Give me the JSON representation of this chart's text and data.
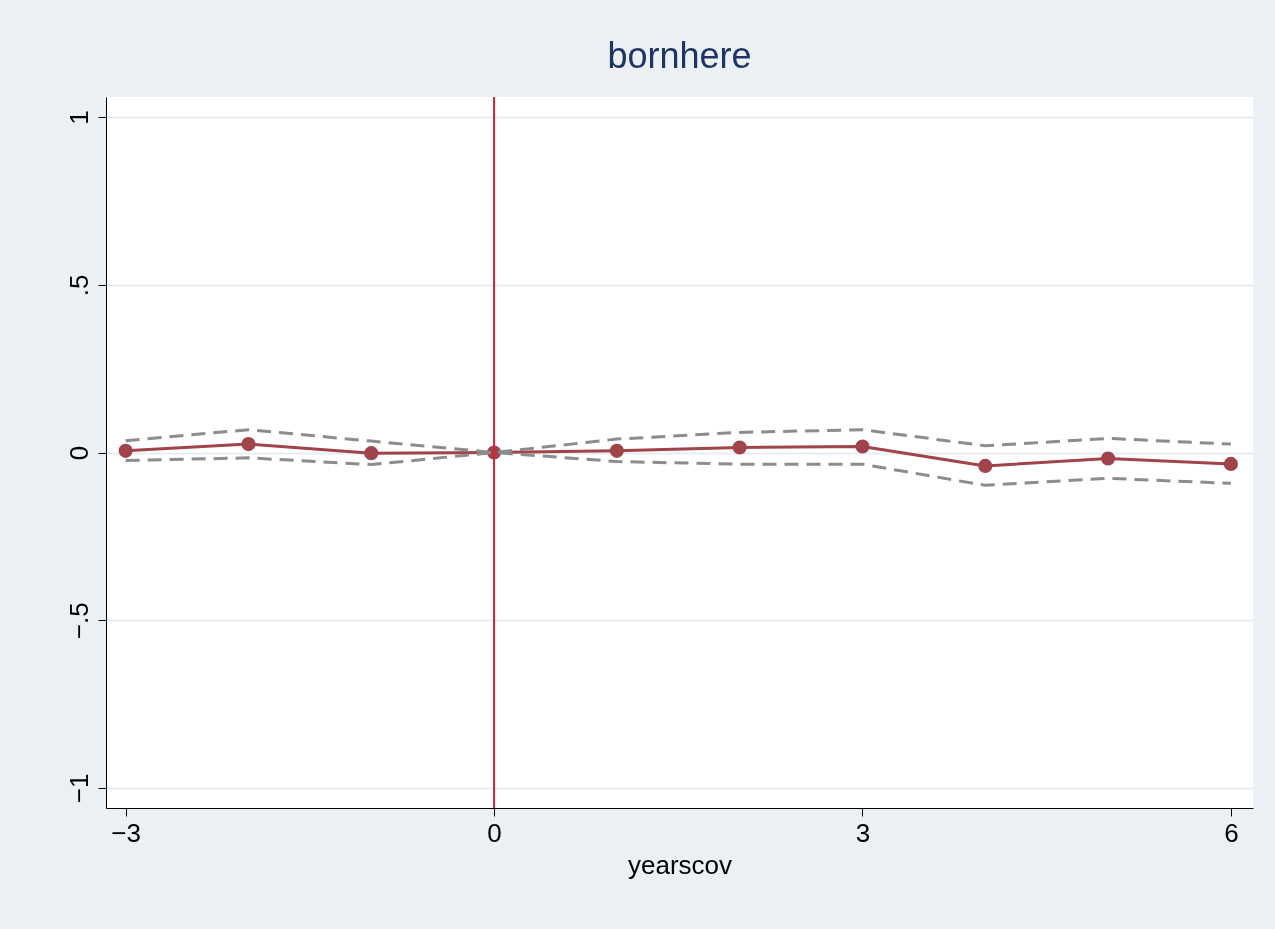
{
  "chart_data": {
    "type": "line",
    "title": "bornhere",
    "xlabel": "yearscov",
    "x": [
      -3,
      -2,
      -1,
      0,
      1,
      2,
      3,
      4,
      5,
      6
    ],
    "series": [
      {
        "color": "#a0434a",
        "marker": "circle",
        "line_style": "solid",
        "values": [
          0.005,
          0.025,
          -0.002,
          0,
          0.005,
          0.015,
          0.018,
          -0.04,
          -0.018,
          -0.034
        ]
      },
      {
        "color": "#8c8c8c",
        "marker": "none",
        "line_style": "dashed",
        "values": [
          0.035,
          0.068,
          0.034,
          0,
          0.04,
          0.06,
          0.068,
          0.02,
          0.042,
          0.025
        ]
      },
      {
        "color": "#8c8c8c",
        "marker": "none",
        "line_style": "dashed",
        "values": [
          -0.024,
          -0.016,
          -0.036,
          0,
          -0.027,
          -0.035,
          -0.035,
          -0.098,
          -0.077,
          -0.092
        ]
      }
    ],
    "xlim": [
      -3.16,
      6.18
    ],
    "ylim": [
      -1.06,
      1.06
    ],
    "xticks": [
      {
        "value": -3,
        "label": "−3"
      },
      0,
      3,
      6
    ],
    "yticks": [
      {
        "value": -1,
        "label": "−1"
      },
      {
        "value": -0.5,
        "label": "−.5"
      },
      0,
      {
        "value": 0.5,
        "label": ".5"
      },
      1
    ],
    "ref_lines": [
      {
        "axis": "x",
        "value": 0,
        "color": "#d0203a"
      }
    ],
    "grid": "y"
  }
}
